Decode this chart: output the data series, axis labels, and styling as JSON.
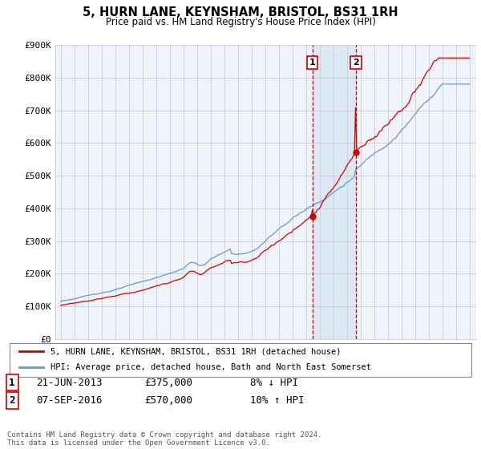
{
  "title": "5, HURN LANE, KEYNSHAM, BRISTOL, BS31 1RH",
  "subtitle": "Price paid vs. HM Land Registry's House Price Index (HPI)",
  "legend_line1": "5, HURN LANE, KEYNSHAM, BRISTOL, BS31 1RH (detached house)",
  "legend_line2": "HPI: Average price, detached house, Bath and North East Somerset",
  "sale1_date": "21-JUN-2013",
  "sale1_price": "£375,000",
  "sale1_hpi": "8% ↓ HPI",
  "sale2_date": "07-SEP-2016",
  "sale2_price": "£570,000",
  "sale2_hpi": "10% ↑ HPI",
  "footer": "Contains HM Land Registry data © Crown copyright and database right 2024.\nThis data is licensed under the Open Government Licence v3.0.",
  "red_color": "#cc0000",
  "blue_color": "#6699cc",
  "shade_color": "#dce9f5",
  "background_color": "#ffffff",
  "plot_bg_color": "#f0f4fa",
  "grid_color": "#cccccc",
  "ylim": [
    0,
    900000
  ],
  "yticks": [
    0,
    100000,
    200000,
    300000,
    400000,
    500000,
    600000,
    700000,
    800000,
    900000
  ],
  "ytick_labels": [
    "£0",
    "£100K",
    "£200K",
    "£300K",
    "£400K",
    "£500K",
    "£600K",
    "£700K",
    "£800K",
    "£900K"
  ],
  "sale1_year": 2013.47,
  "sale1_value": 375000,
  "sale2_year": 2016.68,
  "sale2_value": 570000
}
